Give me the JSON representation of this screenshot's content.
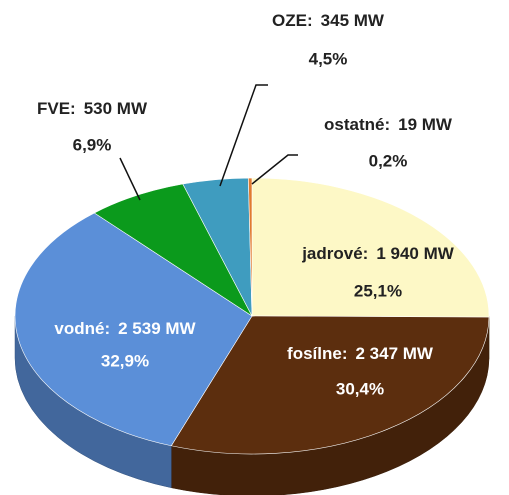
{
  "chart_data": {
    "type": "pie",
    "categories": [
      "jadrové:",
      "fosílne:",
      "vodné:",
      "FVE:",
      "OZE:",
      "ostatné:"
    ],
    "values": [
      1940,
      2347,
      2539,
      530,
      345,
      19
    ],
    "value_labels": [
      "1 940 MW",
      "2 347 MW",
      "2 539 MW",
      "530 MW",
      "345 MW",
      "19 MW"
    ],
    "shares": [
      25.1,
      30.4,
      32.9,
      6.9,
      4.5,
      0.2
    ],
    "share_labels": [
      "25,1%",
      "30,4%",
      "32,9%",
      "6,9%",
      "4,5%",
      "0,2%"
    ],
    "colors": [
      "#fdf8c6",
      "#5c2e0e",
      "#5b8fd8",
      "#0b9a1c",
      "#3f9cbf",
      "#e07b30"
    ]
  }
}
